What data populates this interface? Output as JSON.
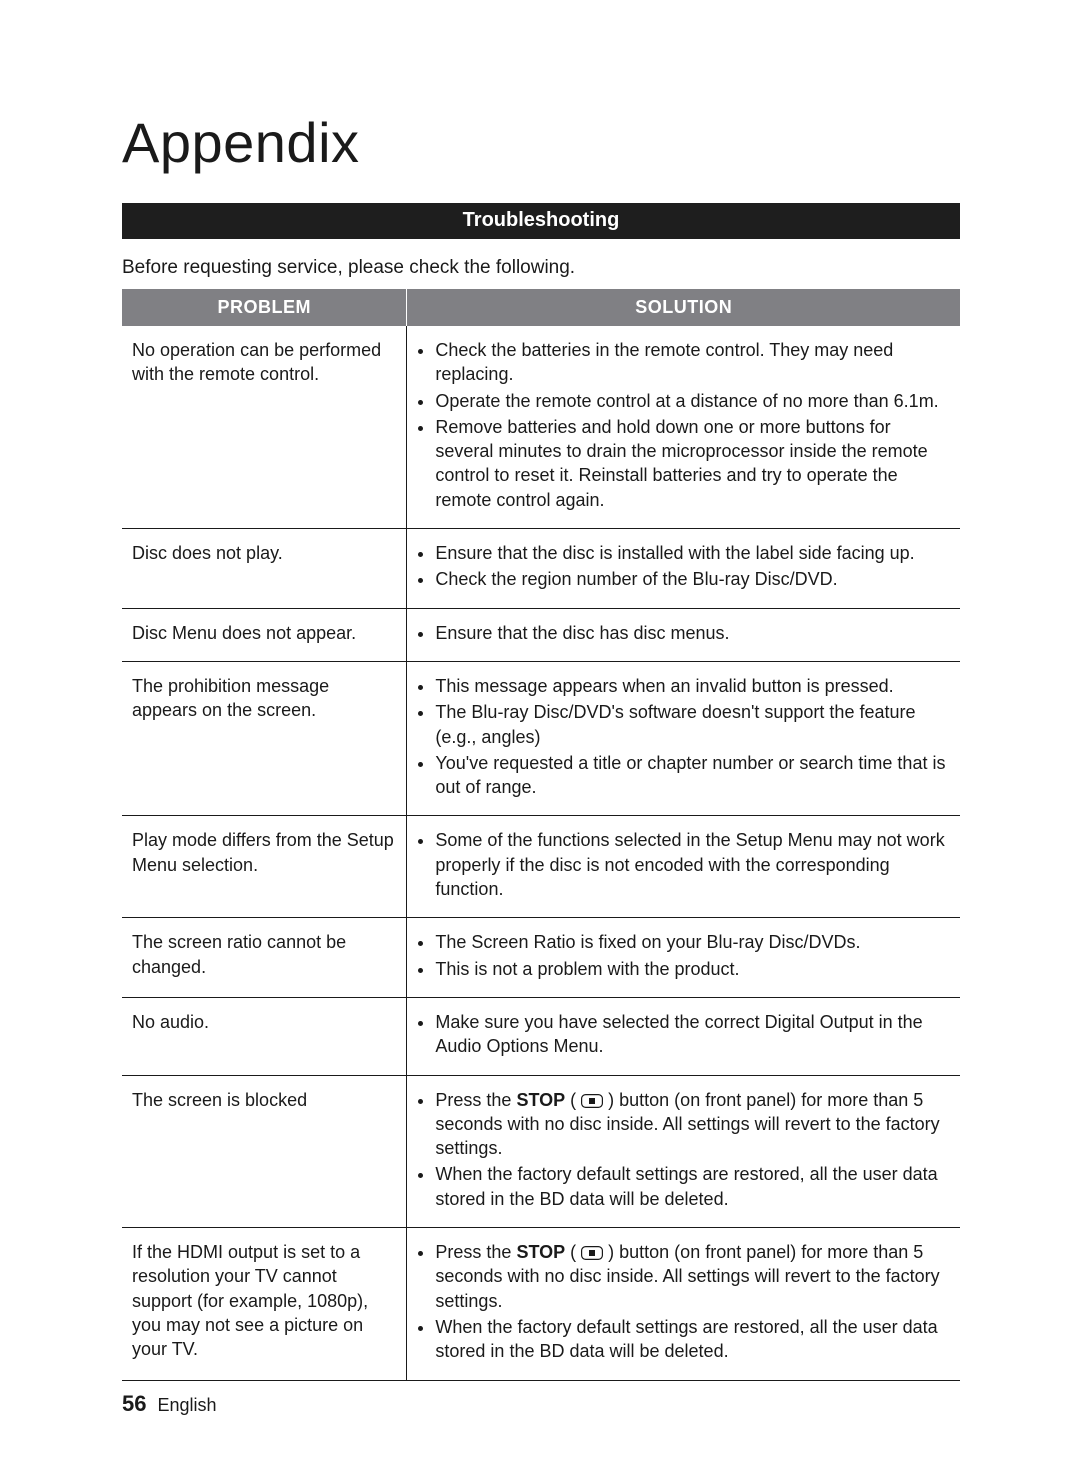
{
  "page": {
    "title": "Appendix",
    "section_heading": "Troubleshooting",
    "intro": "Before requesting service, please check the following.",
    "page_number": "56",
    "language": "English",
    "banner_bg": "#1e1e1e",
    "banner_text_color": "#ffffff",
    "header_row_bg": "#808084",
    "header_row_text_color": "#ffffff",
    "border_color": "#1a1a1a"
  },
  "table": {
    "col_problem": "PROBLEM",
    "col_solution": "SOLUTION",
    "rows": [
      {
        "problem": "No operation can be performed with the remote control.",
        "solutions": [
          "Check the batteries in the remote control. They may need replacing.",
          "Operate the remote control at a distance of no more than 6.1m.",
          "Remove batteries and hold down one or more buttons for several minutes to drain the microprocessor inside the remote control to reset it. Reinstall batteries and try to operate the remote control again."
        ]
      },
      {
        "problem": "Disc does not play.",
        "solutions": [
          "Ensure that the disc is installed with the label side facing up.",
          "Check the region number of the Blu-ray Disc/DVD."
        ]
      },
      {
        "problem": "Disc Menu does not appear.",
        "solutions": [
          "Ensure that the disc has disc menus."
        ]
      },
      {
        "problem": "The prohibition message appears on the screen.",
        "solutions": [
          "This message appears when an invalid button is pressed.",
          "The Blu-ray Disc/DVD's software doesn't support the feature (e.g., angles)",
          "You've requested a title or chapter number or search time that is out of range."
        ]
      },
      {
        "problem": "Play mode differs from the Setup Menu selection.",
        "solutions": [
          "Some of the functions selected in the Setup Menu may not work properly if the disc is not encoded with the corresponding function."
        ]
      },
      {
        "problem": "The screen ratio cannot be changed.",
        "solutions": [
          "The Screen Ratio is fixed on your Blu-ray Disc/DVDs.",
          "This is not a problem with the product."
        ]
      },
      {
        "problem": "No audio.",
        "solutions": [
          "Make sure you have selected the correct Digital Output in the Audio Options Menu."
        ]
      },
      {
        "problem": "The screen is blocked",
        "solutions": [
          {
            "type": "stop_press",
            "prefix": "Press the ",
            "bold": "STOP",
            "suffix_after_icon": " button (on front panel) for more than 5 seconds with no disc inside. All settings will revert to the factory settings."
          },
          "When the factory default settings are restored, all the user data stored in the BD data will be deleted."
        ]
      },
      {
        "problem": "If the HDMI output is set to a resolution your TV cannot support (for example, 1080p), you may not see a picture on your TV.",
        "solutions": [
          {
            "type": "stop_press",
            "prefix": "Press the ",
            "bold": "STOP",
            "suffix_after_icon": " button (on front panel) for more than 5 seconds with no disc inside. All settings will revert to the factory settings."
          },
          "When the factory default settings are restored, all the user data stored in the BD data will be deleted."
        ]
      }
    ]
  }
}
